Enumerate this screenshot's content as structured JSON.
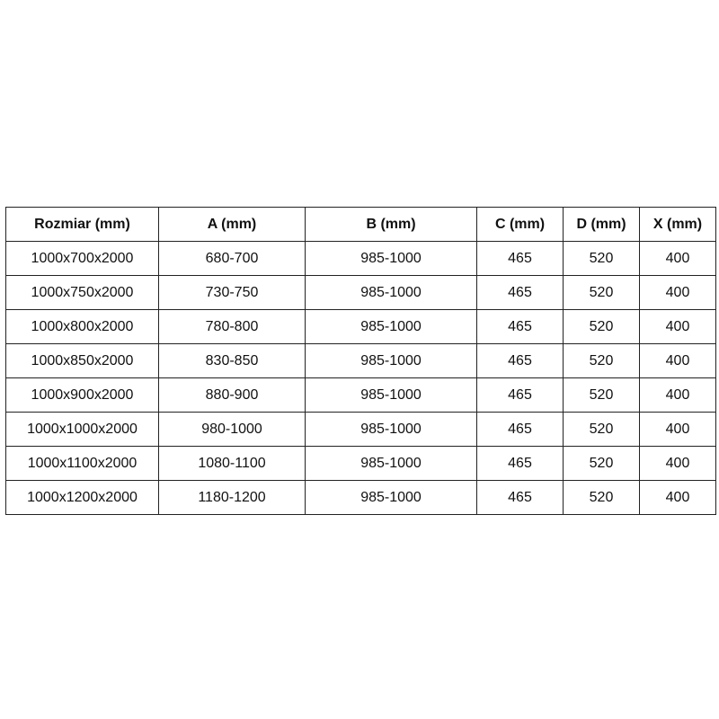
{
  "table": {
    "headers": [
      "Rozmiar (mm)",
      "A (mm)",
      "B (mm)",
      "C (mm)",
      "D (mm)",
      "X (mm)"
    ],
    "rows": [
      [
        "1000x700x2000",
        "680-700",
        "985-1000",
        "465",
        "520",
        "400"
      ],
      [
        "1000x750x2000",
        "730-750",
        "985-1000",
        "465",
        "520",
        "400"
      ],
      [
        "1000x800x2000",
        "780-800",
        "985-1000",
        "465",
        "520",
        "400"
      ],
      [
        "1000x850x2000",
        "830-850",
        "985-1000",
        "465",
        "520",
        "400"
      ],
      [
        "1000x900x2000",
        "880-900",
        "985-1000",
        "465",
        "520",
        "400"
      ],
      [
        "1000x1000x2000",
        "980-1000",
        "985-1000",
        "465",
        "520",
        "400"
      ],
      [
        "1000x1100x2000",
        "1080-1100",
        "985-1000",
        "465",
        "520",
        "400"
      ],
      [
        "1000x1200x2000",
        "1180-1200",
        "985-1000",
        "465",
        "520",
        "400"
      ]
    ]
  }
}
